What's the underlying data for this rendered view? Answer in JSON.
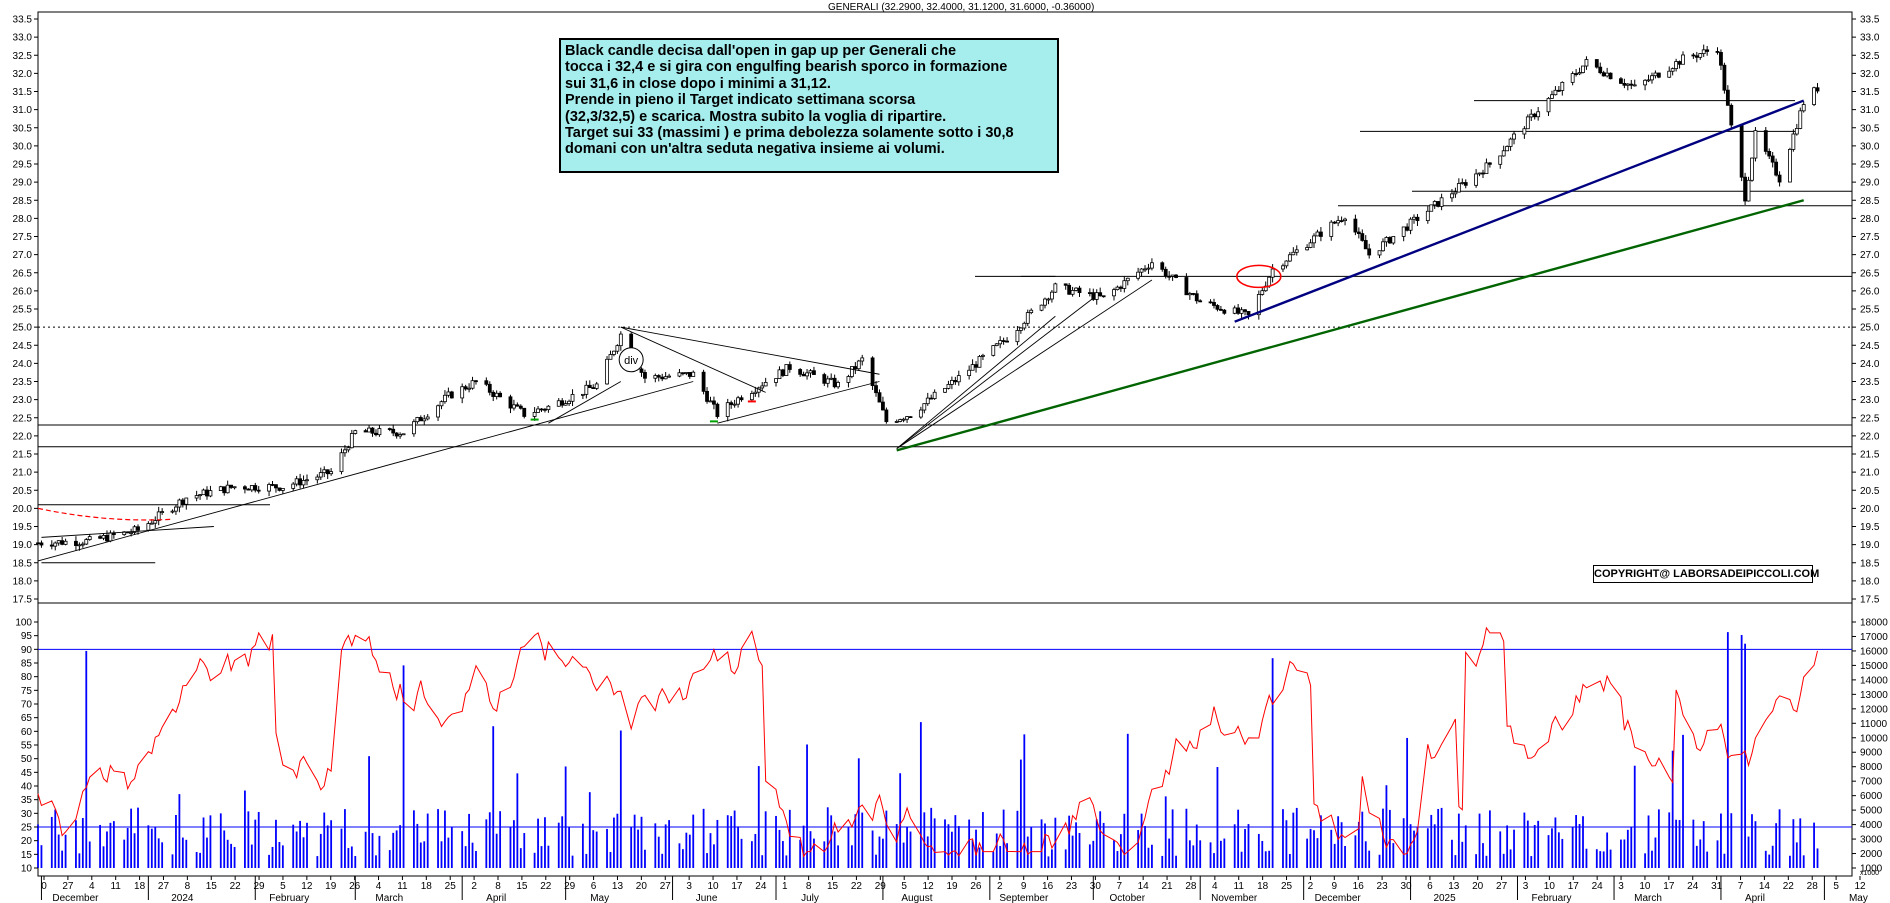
{
  "chart_data": {
    "type": "candlestick",
    "header": "GENERALI (32.2900, 32.4000, 31.1200, 31.6000, -0.36000)",
    "price_axis": {
      "range": [
        17.5,
        33.5
      ],
      "ticks": [
        "17.5",
        "18.0",
        "18.5",
        "19.0",
        "19.5",
        "20.0",
        "20.5",
        "21.0",
        "21.5",
        "22.0",
        "22.5",
        "23.0",
        "23.5",
        "24.0",
        "24.5",
        "25.0",
        "25.5",
        "26.0",
        "26.5",
        "27.0",
        "27.5",
        "28.0",
        "28.5",
        "29.0",
        "29.5",
        "30.0",
        "30.5",
        "31.0",
        "31.5",
        "32.0",
        "32.5",
        "33.0",
        "33.5"
      ]
    },
    "oscillator_axis": {
      "range": [
        10,
        100
      ],
      "ticks": [
        "10",
        "15",
        "20",
        "25",
        "30",
        "35",
        "40",
        "45",
        "50",
        "55",
        "60",
        "65",
        "70",
        "75",
        "80",
        "85",
        "90",
        "95",
        "100"
      ],
      "levels": [
        90,
        25
      ],
      "color": "#ff0000"
    },
    "volume_axis": {
      "range": [
        1000,
        18000
      ],
      "ticks": [
        "1000",
        "2000",
        "3000",
        "4000",
        "5000",
        "6000",
        "7000",
        "8000",
        "9000",
        "10000",
        "11000",
        "12000",
        "13000",
        "14000",
        "15000",
        "16000",
        "17000",
        "18000"
      ],
      "unit_label": "x1000",
      "color": "#0000ff"
    },
    "x_day_labels": [
      "0",
      "27",
      "4",
      "11",
      "18",
      "27",
      "8",
      "15",
      "22",
      "29",
      "5",
      "12",
      "19",
      "26",
      "4",
      "11",
      "18",
      "25",
      "2",
      "8",
      "15",
      "22",
      "29",
      "6",
      "13",
      "20",
      "27",
      "3",
      "10",
      "17",
      "24",
      "1",
      "8",
      "15",
      "22",
      "29",
      "5",
      "12",
      "19",
      "26",
      "2",
      "9",
      "16",
      "23",
      "30",
      "7",
      "14",
      "21",
      "28",
      "4",
      "11",
      "18",
      "25",
      "2",
      "9",
      "16",
      "23",
      "30",
      "6",
      "13",
      "20",
      "27",
      "3",
      "10",
      "17",
      "24",
      "3",
      "10",
      "17",
      "24",
      "31",
      "7",
      "14",
      "22",
      "28",
      "5",
      "12"
    ],
    "x_month_labels": [
      "December",
      "2024",
      "February",
      "March",
      "April",
      "May",
      "June",
      "July",
      "August",
      "September",
      "October",
      "November",
      "December",
      "2025",
      "February",
      "March",
      "April",
      "May"
    ],
    "price_series": [
      {
        "date": "2023-11-30",
        "value": 19.05
      },
      {
        "date": "2023-12-15",
        "value": 19.1
      },
      {
        "date": "2023-12-29",
        "value": 19.4
      },
      {
        "date": "2024-01-12",
        "value": 20.3
      },
      {
        "date": "2024-01-26",
        "value": 20.6
      },
      {
        "date": "2024-02-09",
        "value": 20.6
      },
      {
        "date": "2024-02-23",
        "value": 21.0
      },
      {
        "date": "2024-03-01",
        "value": 22.1
      },
      {
        "date": "2024-03-15",
        "value": 22.1
      },
      {
        "date": "2024-03-28",
        "value": 23.1
      },
      {
        "date": "2024-04-05",
        "value": 23.5
      },
      {
        "date": "2024-04-19",
        "value": 22.6
      },
      {
        "date": "2024-04-26",
        "value": 22.8
      },
      {
        "date": "2024-05-10",
        "value": 23.4
      },
      {
        "date": "2024-05-17",
        "value": 24.8
      },
      {
        "date": "2024-05-24",
        "value": 23.6
      },
      {
        "date": "2024-06-07",
        "value": 23.7
      },
      {
        "date": "2024-06-14",
        "value": 22.6
      },
      {
        "date": "2024-06-21",
        "value": 23.1
      },
      {
        "date": "2024-07-05",
        "value": 23.9
      },
      {
        "date": "2024-07-19",
        "value": 23.4
      },
      {
        "date": "2024-07-26",
        "value": 24.1
      },
      {
        "date": "2024-08-02",
        "value": 22.4
      },
      {
        "date": "2024-08-09",
        "value": 22.6
      },
      {
        "date": "2024-08-23",
        "value": 23.6
      },
      {
        "date": "2024-09-06",
        "value": 24.7
      },
      {
        "date": "2024-09-20",
        "value": 26.1
      },
      {
        "date": "2024-10-04",
        "value": 25.8
      },
      {
        "date": "2024-10-18",
        "value": 26.8
      },
      {
        "date": "2024-11-01",
        "value": 25.7
      },
      {
        "date": "2024-11-15",
        "value": 25.3
      },
      {
        "date": "2024-11-22",
        "value": 26.6
      },
      {
        "date": "2024-12-06",
        "value": 27.6
      },
      {
        "date": "2024-12-13",
        "value": 28.1
      },
      {
        "date": "2024-12-20",
        "value": 27.0
      },
      {
        "date": "2025-01-10",
        "value": 28.5
      },
      {
        "date": "2025-01-24",
        "value": 29.5
      },
      {
        "date": "2025-02-07",
        "value": 31.0
      },
      {
        "date": "2025-02-21",
        "value": 32.3
      },
      {
        "date": "2025-03-07",
        "value": 31.6
      },
      {
        "date": "2025-03-21",
        "value": 32.4
      },
      {
        "date": "2025-03-31",
        "value": 32.7
      },
      {
        "date": "2025-04-04",
        "value": 30.5
      },
      {
        "date": "2025-04-08",
        "value": 28.6
      },
      {
        "date": "2025-04-11",
        "value": 30.3
      },
      {
        "date": "2025-04-18",
        "value": 29.1
      },
      {
        "date": "2025-04-25",
        "value": 31.2
      },
      {
        "date": "2025-04-29",
        "value": 31.6
      }
    ],
    "horizontal_levels": [
      {
        "price": 25.0,
        "style": "dotted"
      },
      {
        "price": 22.3,
        "style": "solid"
      },
      {
        "price": 21.7,
        "style": "solid"
      },
      {
        "price": 26.4,
        "style": "solid"
      },
      {
        "price": 28.35,
        "style": "solid"
      },
      {
        "price": 28.75,
        "style": "solid"
      },
      {
        "price": 30.4,
        "style": "solid"
      },
      {
        "price": 31.25,
        "style": "solid"
      },
      {
        "price": 20.1,
        "style": "solid"
      }
    ],
    "trendlines": [
      {
        "color": "#000080",
        "from": {
          "date": "2024-11-11",
          "price": 25.15
        },
        "to": {
          "date": "2025-04-25",
          "price": 31.25
        }
      },
      {
        "color": "#006400",
        "from": {
          "date": "2024-08-05",
          "price": 21.6
        },
        "to": {
          "date": "2025-04-25",
          "price": 28.5
        }
      }
    ],
    "annotations": {
      "div_label": "div",
      "copyright": "COPYRIGHT@ LABORSADEIPICCOLI.COM",
      "note_lines": [
        "Black candle decisa dall'open in gap up per Generali che",
        "tocca i 32,4 e si gira con engulfing bearish sporco in formazione",
        "sui 31,6 in close dopo i minimi a 31,12.",
        "Prende in pieno il Target indicato settimana scorsa",
        "(32,3/32,5) e scarica. Mostra subito la voglia di ripartire.",
        "Target sui 33 (massimi ) e prima debolezza solamente sotto i 30,8",
        "domani con un'altra seduta negativa insieme ai volumi."
      ]
    },
    "colors": {
      "candle": "#000000",
      "oscillator": "#ff0000",
      "volume": "#0000ff",
      "note_bg": "#a6eded",
      "trend_blue": "#000080",
      "trend_green": "#006400"
    }
  }
}
